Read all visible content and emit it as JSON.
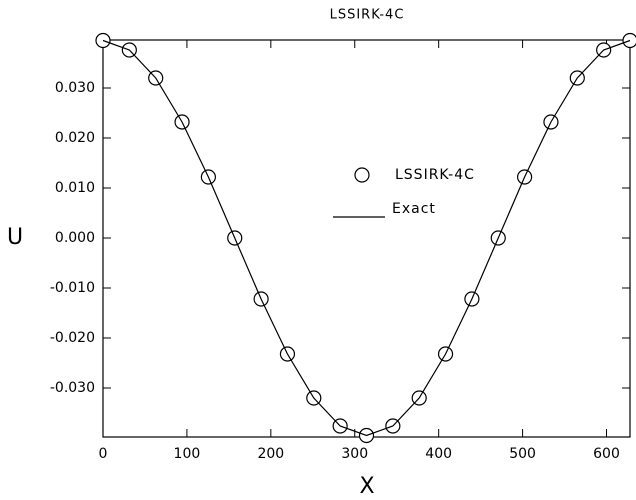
{
  "chart_data": {
    "type": "line",
    "title": "LSSIRK-4C",
    "x_label": "X",
    "y_label": "U",
    "x": [
      0,
      31.4,
      62.8,
      94.2,
      125.6,
      157,
      188.4,
      219.8,
      251.2,
      282.6,
      314,
      345.4,
      376.8,
      408.2,
      439.6,
      471,
      502.4,
      533.8,
      565.2,
      596.6,
      628
    ],
    "series": [
      {
        "name": "LSSIRK-4C",
        "style": "markers",
        "color": "#000000",
        "values": [
          0.0395,
          0.0376,
          0.032,
          0.0232,
          0.0122,
          0.0,
          -0.0122,
          -0.0232,
          -0.032,
          -0.0376,
          -0.0395,
          -0.0376,
          -0.032,
          -0.0232,
          -0.0122,
          0.0,
          0.0122,
          0.0232,
          0.032,
          0.0376,
          0.0395
        ]
      },
      {
        "name": "Exact",
        "style": "line",
        "color": "#000000",
        "values": [
          0.0395,
          0.0376,
          0.032,
          0.0232,
          0.0122,
          0.0,
          -0.0122,
          -0.0232,
          -0.032,
          -0.0376,
          -0.0395,
          -0.0376,
          -0.032,
          -0.0232,
          -0.0122,
          0.0,
          0.0122,
          0.0232,
          0.032,
          0.0376,
          0.0395
        ]
      }
    ],
    "xlim": [
      0,
      628
    ],
    "ylim": [
      -0.0398,
      0.0396
    ],
    "xticks": [
      0,
      100,
      200,
      300,
      400,
      500,
      600
    ],
    "yticks": [
      {
        "value": -0.03,
        "label": "-0.030"
      },
      {
        "value": -0.02,
        "label": "-0.020"
      },
      {
        "value": -0.01,
        "label": "-0.010"
      },
      {
        "value": 0,
        "label": "0.000"
      },
      {
        "value": 0.01,
        "label": "0.010"
      },
      {
        "value": 0.02,
        "label": "0.020"
      },
      {
        "value": 0.03,
        "label": "0.030"
      }
    ],
    "grid": false
  }
}
